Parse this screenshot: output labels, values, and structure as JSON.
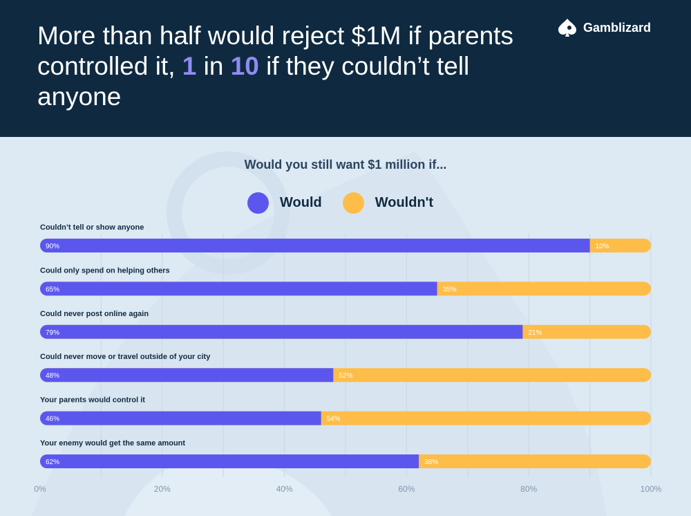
{
  "header": {
    "headline_parts": [
      "More than half would reject $1M if parents controlled it, ",
      "1",
      " in ",
      "10",
      " if they couldn’t tell anyone"
    ],
    "brand_name": "Gamblizard",
    "brand_icon": "spade-lizard-icon"
  },
  "colors": {
    "header_bg": "#0f2a40",
    "page_bg": "#dde9f3",
    "would": "#5b57ee",
    "wouldnt": "#fdbd48",
    "highlight": "#8f8cf2"
  },
  "chart_data": {
    "type": "bar",
    "orientation": "horizontal",
    "stacked": true,
    "title": "Would you still want $1 million if...",
    "legend": [
      "Would",
      "Wouldn't"
    ],
    "legend_position": "top-center",
    "categories": [
      "Couldn’t tell or show anyone",
      "Could only spend on helping others",
      "Could never post online again",
      "Could never move or travel outside of your city",
      "Your parents would control it",
      "Your enemy would get the same amount"
    ],
    "series": [
      {
        "name": "Would",
        "values": [
          90,
          65,
          79,
          48,
          46,
          62
        ],
        "labels": [
          "90%",
          "65%",
          "79%",
          "48%",
          "46%",
          "62%"
        ]
      },
      {
        "name": "Wouldn't",
        "values": [
          10,
          35,
          21,
          52,
          54,
          38
        ],
        "labels": [
          "10%",
          "35%",
          "21%",
          "52%",
          "54%",
          "38%"
        ]
      }
    ],
    "xlim": [
      0,
      100
    ],
    "x_ticks": [
      0,
      20,
      40,
      60,
      80,
      100
    ],
    "x_tick_labels": [
      "0%",
      "20%",
      "40%",
      "60%",
      "80%",
      "100%"
    ],
    "grid": true
  }
}
